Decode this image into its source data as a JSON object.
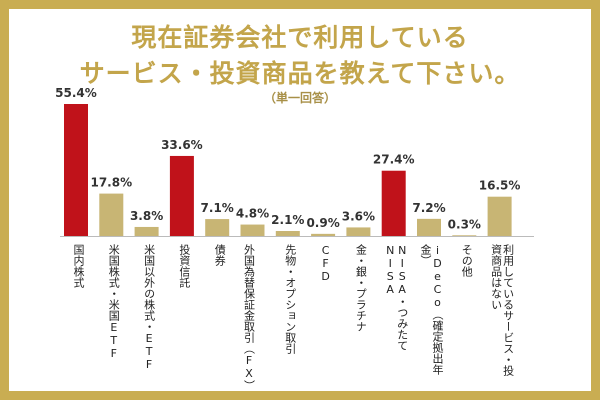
{
  "title_line1": "現在証券会社で利用している",
  "title_line2": "サービス・投資商品を教えて下さい。",
  "subtitle": "（単一回答）",
  "colors": {
    "frame": "#c9ad52",
    "title": "#c3a54b",
    "highlight": "#c0121a",
    "normal": "#c8b574"
  },
  "chart_data": {
    "type": "bar",
    "categories": [
      "国内株式",
      "米国株式・米国ETF",
      "米国以外の株式・ETF",
      "投資信託",
      "債券",
      "外国為替保証金取引（FX）",
      "先物・オプション取引",
      "CFD",
      "金・銀・プラチナ",
      "NISA・つみたてNISA",
      "iDeCo（確定拠出年金）",
      "その他",
      "利用しているサービス・投資商品はない"
    ],
    "values": [
      55.4,
      17.8,
      3.8,
      33.6,
      7.1,
      4.8,
      2.1,
      0.9,
      3.6,
      27.4,
      7.2,
      0.3,
      16.5
    ],
    "value_labels": [
      "55.4%",
      "17.8%",
      "3.8%",
      "33.6%",
      "7.1%",
      "4.8%",
      "2.1%",
      "0.9%",
      "3.6%",
      "27.4%",
      "7.2%",
      "0.3%",
      "16.5%"
    ],
    "highlighted": [
      true,
      false,
      false,
      true,
      false,
      false,
      false,
      false,
      false,
      true,
      false,
      false,
      false
    ],
    "ylim": [
      0,
      55.4
    ],
    "grid": false,
    "legend": "none"
  }
}
